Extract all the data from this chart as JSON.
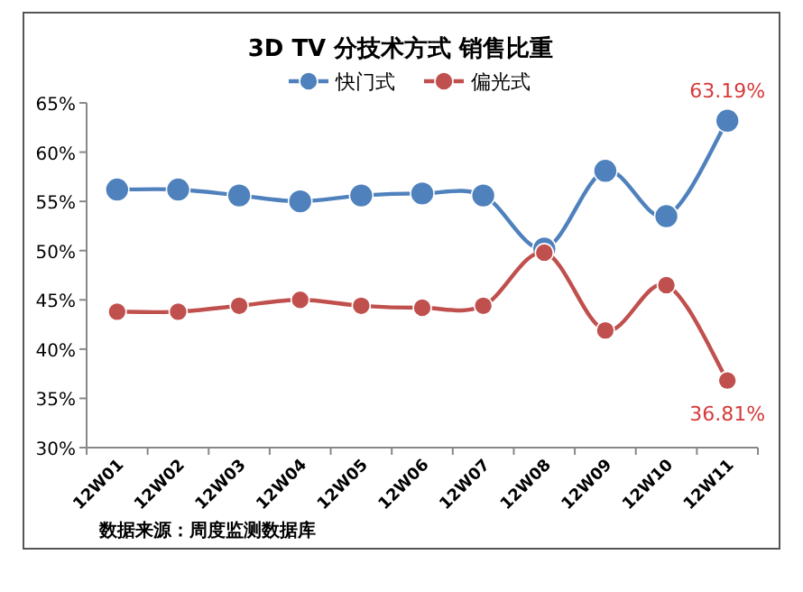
{
  "chart_data": {
    "type": "line",
    "title": "3D TV 分技术方式 销售比重",
    "categories": [
      "12W01",
      "12W02",
      "12W03",
      "12W04",
      "12W05",
      "12W06",
      "12W07",
      "12W08",
      "12W09",
      "12W10",
      "12W11"
    ],
    "series": [
      {
        "name": "快门式",
        "color": "#4f81bd",
        "values": [
          56.2,
          56.2,
          55.6,
          55.0,
          55.6,
          55.8,
          55.6,
          50.2,
          58.1,
          53.5,
          63.19
        ],
        "value_labels": [
          null,
          null,
          null,
          null,
          null,
          null,
          null,
          null,
          null,
          null,
          "63.19%"
        ]
      },
      {
        "name": "偏光式",
        "color": "#c0504d",
        "values": [
          43.8,
          43.8,
          44.4,
          45.0,
          44.4,
          44.2,
          44.4,
          49.8,
          41.9,
          46.5,
          36.81
        ],
        "value_labels": [
          null,
          null,
          null,
          null,
          null,
          null,
          null,
          null,
          null,
          null,
          "36.81%"
        ]
      }
    ],
    "ylim": [
      30,
      65
    ],
    "yticks": [
      {
        "value": 30,
        "label": "30%"
      },
      {
        "value": 35,
        "label": "35%"
      },
      {
        "value": 40,
        "label": "40%"
      },
      {
        "value": 45,
        "label": "45%"
      },
      {
        "value": 50,
        "label": "50%"
      },
      {
        "value": 55,
        "label": "55%"
      },
      {
        "value": 60,
        "label": "60%"
      },
      {
        "value": 65,
        "label": "65%"
      }
    ],
    "marker": "circle",
    "line_style": "solid",
    "legend": "top",
    "grid": false,
    "annotations": [
      "数据来源：周度监测数据库"
    ]
  }
}
